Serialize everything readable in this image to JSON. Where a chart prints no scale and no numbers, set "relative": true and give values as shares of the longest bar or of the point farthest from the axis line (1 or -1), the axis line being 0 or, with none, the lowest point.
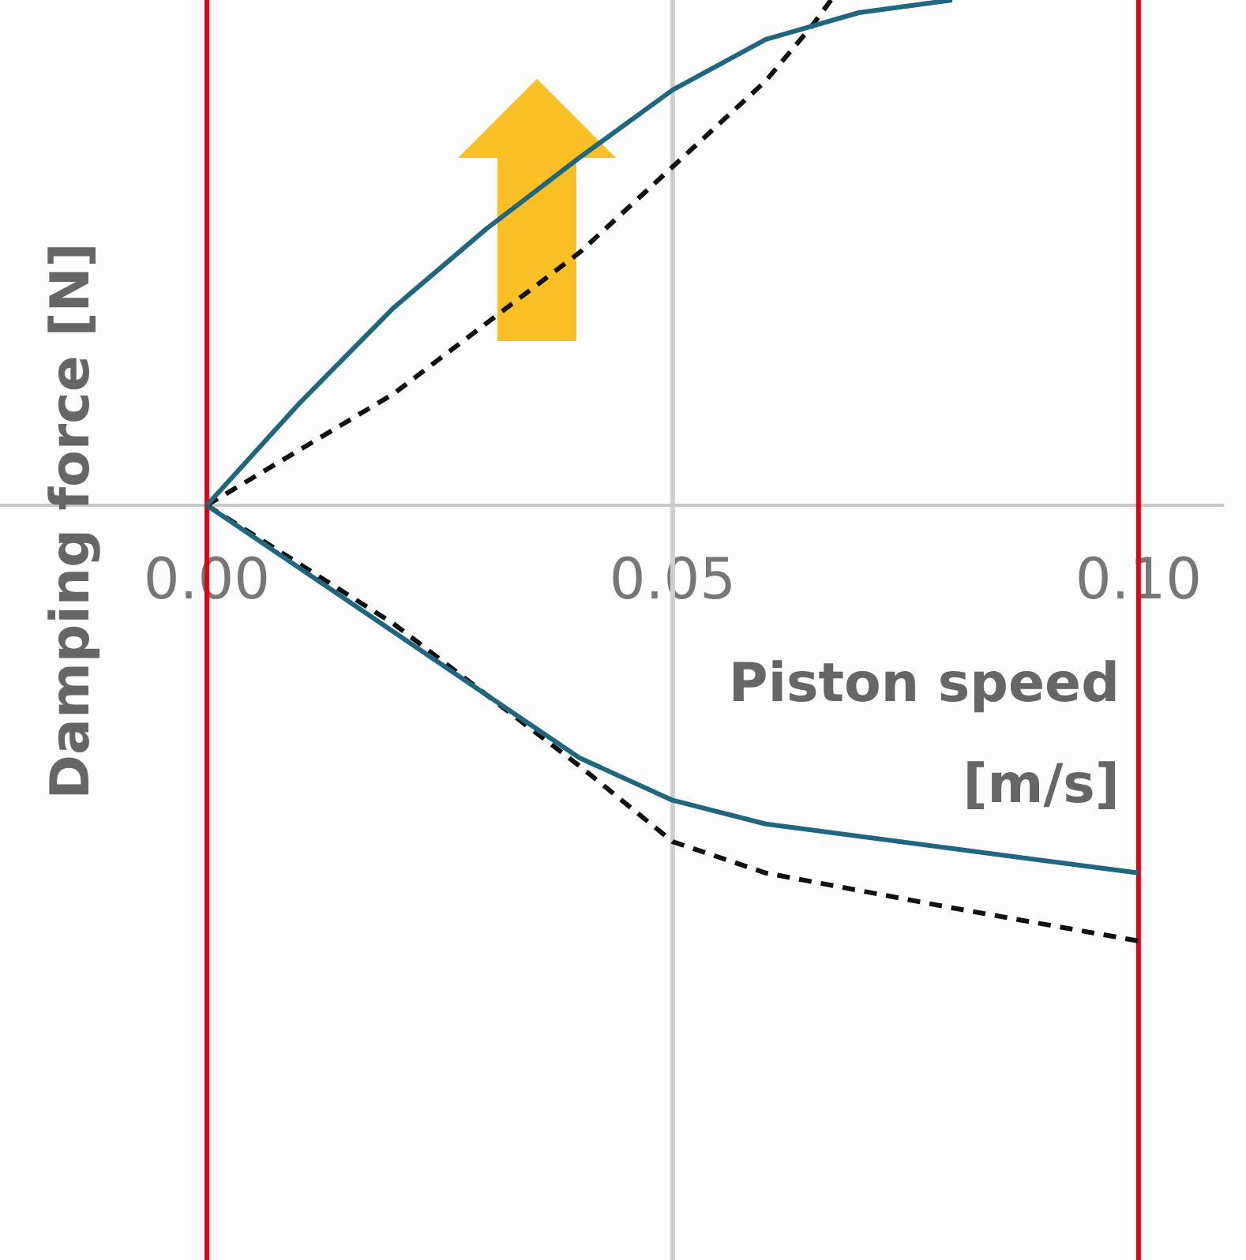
{
  "chart_data": {
    "type": "line",
    "xlabel": "Piston speed [m/s]",
    "ylabel": "Damping force [N]",
    "relative": true,
    "xlim": [
      -0.0222,
      0.109
    ],
    "xticks": [
      {
        "value": 0,
        "label": "0.00"
      },
      {
        "value": 0.05,
        "label": "0.05"
      },
      {
        "value": 0.1,
        "label": "0.10"
      }
    ],
    "legend": false,
    "marker": "none",
    "series": [
      {
        "color": "#1f6680",
        "line_style": "solid",
        "x": [
          0,
          0.01,
          0.02,
          0.03,
          0.04,
          0.05,
          0.06,
          0.07,
          0.08
        ],
        "values": [
          0,
          0.203,
          0.39,
          0.547,
          0.688,
          0.822,
          0.922,
          0.975,
          1.0
        ]
      },
      {
        "color": "#111111",
        "line_style": "dashed",
        "x": [
          0,
          0.01,
          0.02,
          0.03,
          0.04,
          0.05,
          0.06,
          0.065,
          0.067
        ],
        "values": [
          0,
          0.11,
          0.22,
          0.36,
          0.5,
          0.67,
          0.84,
          0.95,
          1.0
        ]
      },
      {
        "color": "#1f6680",
        "line_style": "solid",
        "x": [
          0,
          0.02,
          0.04,
          0.05,
          0.06,
          0.1
        ],
        "values": [
          0,
          -0.25,
          -0.5,
          -0.584,
          -0.631,
          -0.728
        ]
      },
      {
        "color": "#111111",
        "line_style": "dashed",
        "x": [
          0,
          0.02,
          0.04,
          0.05,
          0.06,
          0.08,
          0.1
        ],
        "values": [
          0,
          -0.234,
          -0.516,
          -0.666,
          -0.728,
          -0.797,
          -0.8625
        ]
      }
    ],
    "ref_lines": [
      {
        "axis": "x",
        "value": 0.05,
        "color": "#cfcfcf"
      },
      {
        "axis": "x",
        "value": 0,
        "color": "#e60012"
      },
      {
        "axis": "x",
        "value": 0.1,
        "color": "#e60012"
      }
    ]
  }
}
